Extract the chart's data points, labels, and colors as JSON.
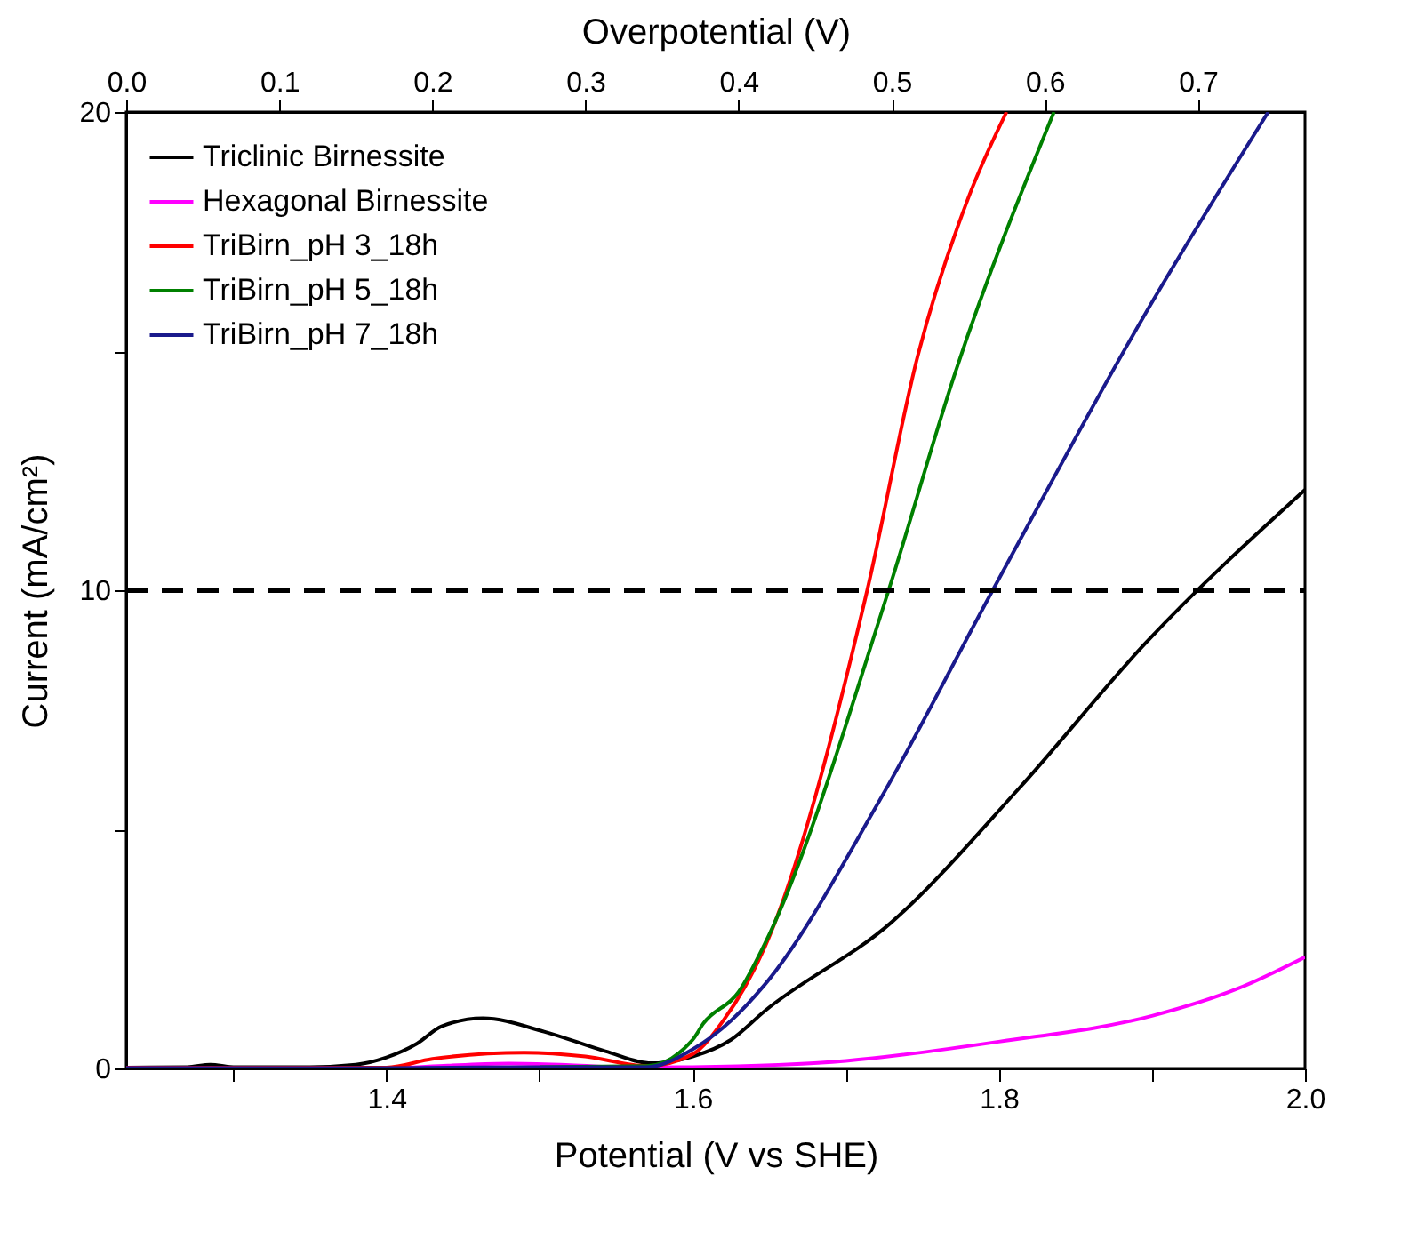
{
  "chart_data": {
    "type": "line",
    "xlabel": "Potential (V vs SHE)",
    "ylabel": "Current (mA/cm²)",
    "x2label": "Overpotential (V)",
    "xlim": [
      1.23,
      2.0
    ],
    "xticks": [
      {
        "value": 1.3,
        "label": null
      },
      1.4,
      {
        "value": 1.5,
        "label": null
      },
      1.6,
      {
        "value": 1.7,
        "label": null
      },
      1.8,
      {
        "value": 1.9,
        "label": null
      },
      {
        "value": 2,
        "label": "2.0"
      }
    ],
    "x2lim": [
      0,
      0.77
    ],
    "x2ticks": [
      {
        "value": 0,
        "label": "0.0"
      },
      0.1,
      0.2,
      0.3,
      0.4,
      0.5,
      0.6,
      0.7
    ],
    "ylim": [
      0,
      20
    ],
    "yticks": [
      0,
      {
        "value": 5,
        "label": null
      },
      10,
      {
        "value": 15,
        "label": null
      },
      20
    ],
    "legend": "top left",
    "grid": false,
    "marker": "none",
    "line_style": "solid",
    "ref_lines": [
      {
        "axis": "y",
        "value": 10,
        "label": null,
        "color": "#000000",
        "line_style": "dashed"
      }
    ],
    "series": [
      {
        "name": "Triclinic Birnessite",
        "color": "#000000",
        "x": [
          1.23,
          1.27,
          1.285,
          1.3,
          1.35,
          1.38,
          1.4,
          1.42,
          1.436,
          1.463,
          1.503,
          1.543,
          1.573,
          1.6,
          1.625,
          1.647,
          1.73,
          1.813,
          1.896,
          2.0
        ],
        "values": [
          0.02,
          0.03,
          0.08,
          0.03,
          0.03,
          0.08,
          0.23,
          0.52,
          0.88,
          1.05,
          0.77,
          0.36,
          0.11,
          0.25,
          0.6,
          1.2,
          3.06,
          5.85,
          8.9,
          12.1
        ]
      },
      {
        "name": "Hexagonal Birnessite",
        "color": "#ff00ff",
        "x": [
          1.23,
          1.4,
          1.44,
          1.48,
          1.52,
          1.56,
          1.6,
          1.7,
          1.8,
          1.9,
          1.956,
          2.0
        ],
        "values": [
          0.01,
          0.01,
          0.06,
          0.1,
          0.07,
          0.02,
          0.03,
          0.16,
          0.56,
          1.1,
          1.67,
          2.33
        ]
      },
      {
        "name": "TriBirn_pH 3_18h",
        "color": "#ff0000",
        "x": [
          1.23,
          1.4,
          1.43,
          1.49,
          1.53,
          1.57,
          1.6,
          1.62,
          1.647,
          1.714,
          1.747,
          1.78,
          1.805
        ],
        "values": [
          0.01,
          0.02,
          0.2,
          0.33,
          0.25,
          0.05,
          0.3,
          1.0,
          2.53,
          10,
          14.9,
          18.2,
          20
        ]
      },
      {
        "name": "TriBirn_pH 5_18h",
        "color": "#008000",
        "x": [
          1.5,
          1.57,
          1.6,
          1.607,
          1.63,
          1.647,
          1.728,
          1.772,
          1.836
        ],
        "values": [
          0.03,
          0.05,
          0.6,
          0.94,
          1.6,
          2.6,
          10,
          14.6,
          20
        ]
      },
      {
        "name": "TriBirn_pH 7_18h",
        "color": "#1a1a8c",
        "x": [
          1.23,
          1.4,
          1.5,
          1.57,
          1.6,
          1.625,
          1.647,
          1.722,
          1.796,
          1.896,
          1.976
        ],
        "values": [
          0.01,
          0.01,
          0.03,
          0.03,
          0.4,
          1.0,
          1.75,
          5.6,
          10,
          15.8,
          20
        ]
      }
    ]
  }
}
